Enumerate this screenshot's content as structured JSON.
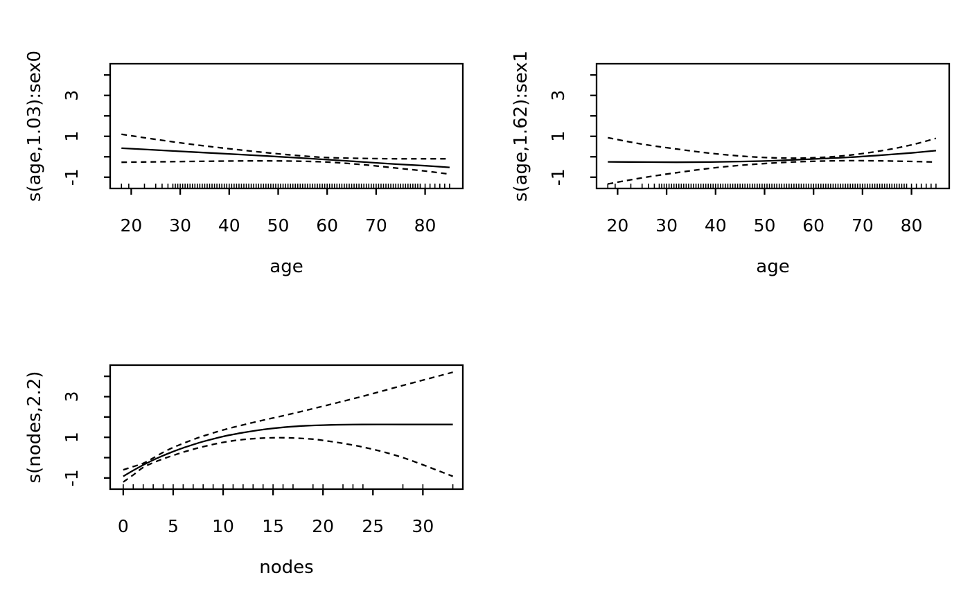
{
  "figure": {
    "background_color": "#ffffff",
    "line_color": "#000000",
    "kind": "R plot.gam output, 2x2 layout with 3 panels"
  },
  "chart_data": [
    {
      "id": "s_age_sex0",
      "type": "line",
      "title": "",
      "xlabel": "age",
      "ylabel": "s(age,1.03):sex0",
      "xlim": [
        15.7,
        87.7
      ],
      "ylim": [
        -1.55,
        4.55
      ],
      "xticks": [
        20,
        30,
        40,
        50,
        60,
        70,
        80
      ],
      "yticks": [
        -1,
        0,
        1,
        2,
        3,
        4
      ],
      "ytick_labeled": [
        -1,
        1,
        3
      ],
      "grid": false,
      "legend": null,
      "series": [
        {
          "name": "fit",
          "line": "solid",
          "x": [
            18,
            25,
            32,
            39,
            46,
            53,
            60,
            67,
            74,
            80,
            85
          ],
          "y": [
            0.42,
            0.33,
            0.24,
            0.15,
            0.06,
            -0.04,
            -0.14,
            -0.25,
            -0.36,
            -0.44,
            -0.52
          ]
        },
        {
          "name": "upper_ci",
          "line": "dashed",
          "x": [
            18,
            25,
            32,
            39,
            46,
            53,
            60,
            67,
            74,
            80,
            85
          ],
          "y": [
            1.1,
            0.85,
            0.62,
            0.42,
            0.24,
            0.08,
            -0.04,
            -0.08,
            -0.1,
            -0.1,
            -0.1
          ]
        },
        {
          "name": "lower_ci",
          "line": "dashed",
          "x": [
            18,
            25,
            32,
            39,
            46,
            53,
            60,
            67,
            74,
            80,
            85
          ],
          "y": [
            -0.27,
            -0.25,
            -0.23,
            -0.21,
            -0.2,
            -0.21,
            -0.26,
            -0.38,
            -0.55,
            -0.7,
            -0.85
          ]
        }
      ],
      "rug": {
        "sparse": [
          18,
          19.5,
          22.7,
          25,
          26.3,
          27.5
        ],
        "dense": {
          "from": 28.5,
          "to": 79,
          "step": 0.5
        },
        "tail": [
          80,
          81,
          82,
          83,
          84,
          85
        ]
      }
    },
    {
      "id": "s_age_sex1",
      "type": "line",
      "title": "",
      "xlabel": "age",
      "ylabel": "s(age,1.62):sex1",
      "xlim": [
        15.7,
        87.7
      ],
      "ylim": [
        -1.55,
        4.55
      ],
      "xticks": [
        20,
        30,
        40,
        50,
        60,
        70,
        80
      ],
      "yticks": [
        -1,
        0,
        1,
        2,
        3,
        4
      ],
      "ytick_labeled": [
        -1,
        1,
        3
      ],
      "grid": false,
      "legend": null,
      "series": [
        {
          "name": "fit",
          "line": "solid",
          "x": [
            18,
            25,
            32,
            39,
            46,
            53,
            60,
            67,
            74,
            80,
            85
          ],
          "y": [
            -0.25,
            -0.26,
            -0.27,
            -0.26,
            -0.23,
            -0.18,
            -0.11,
            -0.03,
            0.08,
            0.19,
            0.3
          ]
        },
        {
          "name": "upper_ci",
          "line": "dashed",
          "x": [
            18,
            25,
            32,
            39,
            46,
            53,
            60,
            67,
            74,
            80,
            85
          ],
          "y": [
            0.93,
            0.62,
            0.38,
            0.17,
            0.02,
            -0.06,
            -0.05,
            0.07,
            0.3,
            0.58,
            0.9
          ]
        },
        {
          "name": "lower_ci",
          "line": "dashed",
          "x": [
            18,
            25,
            32,
            39,
            46,
            53,
            60,
            67,
            74,
            80,
            85
          ],
          "y": [
            -1.33,
            -1.03,
            -0.78,
            -0.56,
            -0.4,
            -0.29,
            -0.22,
            -0.19,
            -0.2,
            -0.23,
            -0.26
          ]
        }
      ],
      "rug": {
        "sparse": [
          18,
          19.5,
          22.7,
          25,
          26.3,
          27.5
        ],
        "dense": {
          "from": 28.5,
          "to": 79,
          "step": 0.5
        },
        "tail": [
          80,
          81,
          82,
          83,
          84,
          85
        ]
      }
    },
    {
      "id": "s_nodes",
      "type": "line",
      "title": "",
      "xlabel": "nodes",
      "ylabel": "s(nodes,2.2)",
      "xlim": [
        -1.31,
        34.0
      ],
      "ylim": [
        -1.55,
        4.55
      ],
      "xticks": [
        0,
        5,
        10,
        15,
        20,
        25,
        30
      ],
      "yticks": [
        -1,
        0,
        1,
        2,
        3,
        4
      ],
      "ytick_labeled": [
        -1,
        1,
        3
      ],
      "grid": false,
      "legend": null,
      "series": [
        {
          "name": "fit",
          "line": "solid",
          "x": [
            0,
            1,
            2,
            3,
            4,
            5,
            6,
            7,
            8,
            10,
            12,
            14,
            16,
            18,
            20,
            24,
            28,
            33
          ],
          "y": [
            -0.92,
            -0.63,
            -0.36,
            -0.12,
            0.1,
            0.3,
            0.48,
            0.64,
            0.79,
            1.04,
            1.23,
            1.38,
            1.49,
            1.56,
            1.6,
            1.63,
            1.63,
            1.63
          ]
        },
        {
          "name": "upper_ci",
          "line": "dashed",
          "x": [
            0,
            1,
            2,
            3,
            4,
            5,
            6,
            7,
            8,
            10,
            12,
            14,
            16,
            18,
            20,
            24,
            28,
            33
          ],
          "y": [
            -0.6,
            -0.44,
            -0.28,
            -0.02,
            0.26,
            0.5,
            0.7,
            0.89,
            1.06,
            1.36,
            1.61,
            1.84,
            2.06,
            2.29,
            2.53,
            3.02,
            3.55,
            4.2
          ]
        },
        {
          "name": "lower_ci",
          "line": "dashed",
          "x": [
            0,
            1,
            2,
            3,
            4,
            5,
            6,
            7,
            8,
            10,
            12,
            14,
            16,
            18,
            20,
            24,
            28,
            33
          ],
          "y": [
            -1.2,
            -0.85,
            -0.48,
            -0.25,
            -0.06,
            0.11,
            0.27,
            0.41,
            0.54,
            0.75,
            0.89,
            0.96,
            0.98,
            0.94,
            0.85,
            0.52,
            0.0,
            -0.92
          ]
        }
      ],
      "rug": {
        "sparse": [
          0,
          1,
          2,
          3,
          4,
          5,
          6,
          7,
          8,
          9,
          10,
          11,
          12,
          13,
          14,
          15,
          16,
          17,
          19,
          20,
          22,
          23,
          24,
          28,
          30,
          33
        ]
      }
    }
  ]
}
